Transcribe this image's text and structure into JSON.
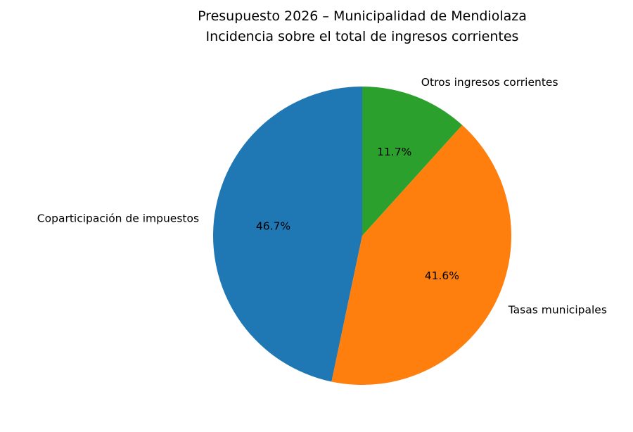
{
  "chart_data": {
    "type": "pie",
    "title": [
      "Presupuesto 2026 – Municipalidad de Mendiolaza",
      "Incidencia sobre el total de ingresos corrientes"
    ],
    "start_angle": 90,
    "counterclockwise": true,
    "slices": [
      {
        "label": "Coparticipación de impuestos",
        "value": 46.7,
        "pct_label": "46.7%",
        "color": "#1f77b4"
      },
      {
        "label": "Tasas municipales",
        "value": 41.6,
        "pct_label": "41.6%",
        "color": "#ff7f0e"
      },
      {
        "label": "Otros ingresos corrientes",
        "value": 11.7,
        "pct_label": "11.7%",
        "color": "#2ca02c"
      }
    ]
  }
}
